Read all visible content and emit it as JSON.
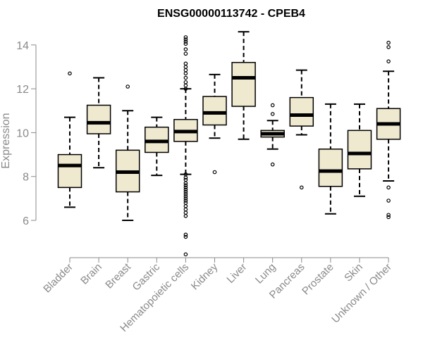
{
  "chart_data": {
    "type": "boxplot",
    "title": "ENSG00000113742 - CPEB4",
    "ylabel": "Expression",
    "ylim": [
      4.3,
      14.7
    ],
    "yticks": [
      6,
      8,
      10,
      12,
      14
    ],
    "box_fill": "#efe9cf",
    "categories": [
      "Bladder",
      "Brain",
      "Breast",
      "Gastric",
      "Hematopoietic cells",
      "Kidney",
      "Liver",
      "Lung",
      "Pancreas",
      "Prostate",
      "Skin",
      "Unknown / Other"
    ],
    "boxes": [
      {
        "whisker_low": 6.6,
        "q1": 7.5,
        "median": 8.5,
        "q3": 9.0,
        "whisker_high": 10.7,
        "outliers": [
          12.7
        ]
      },
      {
        "whisker_low": 8.4,
        "q1": 9.95,
        "median": 10.45,
        "q3": 11.25,
        "whisker_high": 12.5,
        "outliers": []
      },
      {
        "whisker_low": 6.0,
        "q1": 7.3,
        "median": 8.2,
        "q3": 9.2,
        "whisker_high": 11.0,
        "outliers": [
          12.1
        ]
      },
      {
        "whisker_low": 8.05,
        "q1": 9.1,
        "median": 9.6,
        "q3": 10.25,
        "whisker_high": 10.7,
        "outliers": []
      },
      {
        "whisker_low": 8.1,
        "q1": 9.6,
        "median": 10.05,
        "q3": 10.6,
        "whisker_high": 12.0,
        "outliers": [
          4.45,
          5.25,
          5.35,
          6.2,
          6.35,
          6.5,
          6.65,
          6.8,
          6.9,
          7.0,
          7.1,
          7.2,
          7.3,
          7.4,
          7.5,
          7.6,
          7.7,
          7.85,
          7.95,
          8.1,
          12.0,
          12.15,
          12.3,
          12.5,
          12.7,
          12.85,
          13.0,
          13.15,
          13.6,
          13.8,
          14.05,
          14.15,
          14.25,
          14.35
        ]
      },
      {
        "whisker_low": 9.75,
        "q1": 10.35,
        "median": 10.9,
        "q3": 11.65,
        "whisker_high": 12.65,
        "outliers": [
          8.2
        ]
      },
      {
        "whisker_low": 9.7,
        "q1": 11.2,
        "median": 12.5,
        "q3": 13.2,
        "whisker_high": 14.6,
        "outliers": []
      },
      {
        "whisker_low": 9.25,
        "q1": 9.8,
        "median": 9.95,
        "q3": 10.1,
        "whisker_high": 10.55,
        "outliers": [
          8.55,
          10.85,
          11.25
        ]
      },
      {
        "whisker_low": 9.9,
        "q1": 10.3,
        "median": 10.8,
        "q3": 11.6,
        "whisker_high": 12.85,
        "outliers": [
          7.5
        ]
      },
      {
        "whisker_low": 6.3,
        "q1": 7.55,
        "median": 8.25,
        "q3": 9.25,
        "whisker_high": 11.3,
        "outliers": []
      },
      {
        "whisker_low": 7.1,
        "q1": 8.35,
        "median": 9.05,
        "q3": 10.1,
        "whisker_high": 11.3,
        "outliers": []
      },
      {
        "whisker_low": 7.8,
        "q1": 9.7,
        "median": 10.4,
        "q3": 11.1,
        "whisker_high": 12.8,
        "outliers": [
          6.15,
          6.25,
          6.9,
          7.5,
          13.25,
          13.9,
          14.1
        ]
      }
    ]
  }
}
